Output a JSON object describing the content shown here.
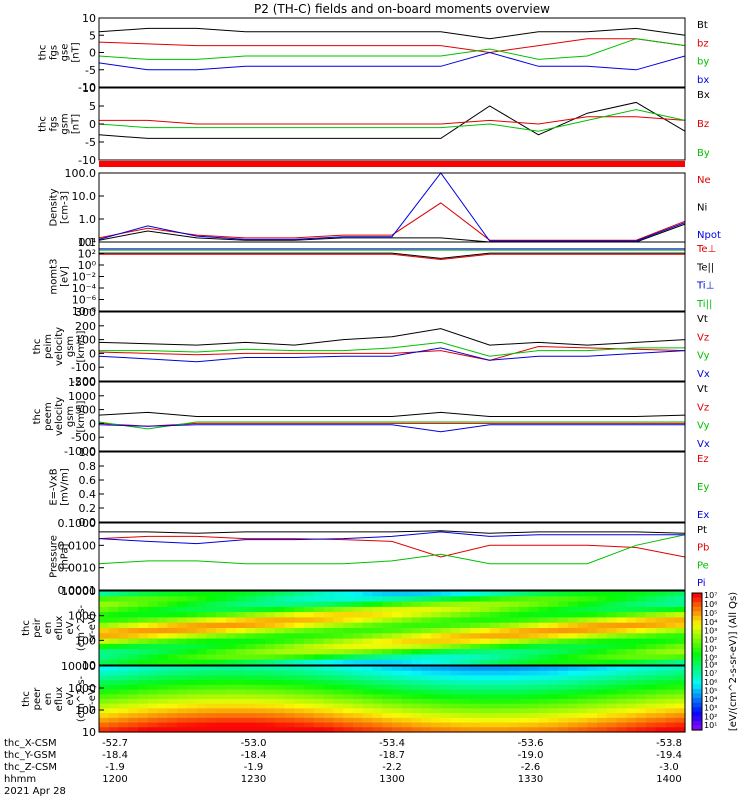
{
  "title": "P2 (TH-C) fields and on-board moments overview",
  "panels": [
    {
      "id": "fgs-gse",
      "ylabel": [
        "thc",
        "fgs",
        "gse",
        "[nT]"
      ],
      "yticks": [
        "10",
        "5",
        "0",
        "-5",
        "-10"
      ],
      "legend": [
        {
          "label": "Bt",
          "color": "#000000"
        },
        {
          "label": "bz",
          "color": "#e00000"
        },
        {
          "label": "by",
          "color": "#00c000"
        },
        {
          "label": "bx",
          "color": "#0000e0"
        }
      ]
    },
    {
      "id": "fgs-gsm",
      "ylabel": [
        "thc",
        "fgs",
        "gsm",
        "[nT]"
      ],
      "yticks": [
        "10",
        "5",
        "0",
        "-5",
        "-10"
      ],
      "legend": [
        {
          "label": "Bx",
          "color": "#000000"
        },
        {
          "label": "Bz",
          "color": "#e00000"
        },
        {
          "label": "By",
          "color": "#00c000"
        }
      ]
    },
    {
      "id": "density",
      "ylabel": [
        "Density",
        "[cm-3]"
      ],
      "yticks": [
        "100.0",
        "10.0",
        "1.0",
        "0.1"
      ],
      "legend": [
        {
          "label": "Ne",
          "color": "#e00000"
        },
        {
          "label": "Ni",
          "color": "#000000"
        },
        {
          "label": "Npot",
          "color": "#0000e0"
        }
      ]
    },
    {
      "id": "temperature",
      "ylabel": [
        "momt3",
        "[eV]"
      ],
      "yticks": [
        "10⁴",
        "10²",
        "10⁰",
        "10⁻²",
        "10⁻⁴",
        "10⁻⁶",
        "10⁻⁸"
      ],
      "legend": [
        {
          "label": "Te⊥",
          "color": "#e00000"
        },
        {
          "label": "Te||",
          "color": "#000000"
        },
        {
          "label": "Ti⊥",
          "color": "#0000e0"
        },
        {
          "label": "Ti||",
          "color": "#00c000"
        }
      ]
    },
    {
      "id": "peim-velocity",
      "ylabel": [
        "thc",
        "peim",
        "velocity",
        "gsm",
        "[km/s]"
      ],
      "yticks": [
        "300",
        "200",
        "100",
        "0",
        "-100",
        "-200"
      ],
      "legend": [
        {
          "label": "Vt",
          "color": "#000000"
        },
        {
          "label": "Vz",
          "color": "#e00000"
        },
        {
          "label": "Vy",
          "color": "#00c000"
        },
        {
          "label": "Vx",
          "color": "#0000e0"
        }
      ]
    },
    {
      "id": "peem-velocity",
      "ylabel": [
        "thc",
        "peem",
        "velocity",
        "gsm",
        "[km/s]"
      ],
      "yticks": [
        "1500",
        "1000",
        "500",
        "0",
        "-500",
        "-1000"
      ],
      "legend": [
        {
          "label": "Vt",
          "color": "#000000"
        },
        {
          "label": "Vz",
          "color": "#e00000"
        },
        {
          "label": "Vy",
          "color": "#00c000"
        },
        {
          "label": "Vx",
          "color": "#0000e0"
        }
      ]
    },
    {
      "id": "efield",
      "ylabel": [
        "E=-VxB",
        "[mV/m]"
      ],
      "yticks": [
        "1.0",
        "0.8",
        "0.6",
        "0.4",
        "0.2",
        "0.0"
      ],
      "legend": [
        {
          "label": "Ez",
          "color": "#e00000"
        },
        {
          "label": "Ey",
          "color": "#00c000"
        },
        {
          "label": "Ex",
          "color": "#0000e0"
        }
      ]
    },
    {
      "id": "pressure",
      "ylabel": [
        "Pressure",
        "[nPa]"
      ],
      "yticks": [
        "0.1000",
        "0.0100",
        "0.0010",
        "0.0001"
      ],
      "legend": [
        {
          "label": "Pt",
          "color": "#000000"
        },
        {
          "label": "Pb",
          "color": "#e00000"
        },
        {
          "label": "Pe",
          "color": "#00c000"
        },
        {
          "label": "Pi",
          "color": "#0000e0"
        }
      ]
    },
    {
      "id": "peir-eflux",
      "ylabel": [
        "thc",
        "peir",
        "en",
        "eflux",
        "eV",
        "(cm^2-s-",
        "sr-eV)"
      ],
      "yticks": [
        "10000",
        "1000",
        "100",
        "10"
      ]
    },
    {
      "id": "peer-eflux",
      "ylabel": [
        "thc",
        "peer",
        "en",
        "eflux",
        "eV",
        "(cm^2-s-",
        "sr-eV)"
      ],
      "yticks": [
        "10000",
        "1000",
        "100",
        "10"
      ]
    }
  ],
  "colorbar": {
    "label": "[eV/(cm^2-s-sr-eV)]",
    "label_right": "(All Qs)",
    "ticks_top": [
      "10⁷",
      "10⁶",
      "10⁵",
      "10⁴",
      "10³",
      "10²",
      "10¹",
      "10⁰"
    ],
    "ticks_bottom": [
      "10⁸",
      "10⁷",
      "10⁶",
      "10⁵",
      "10⁴",
      "10³",
      "10²",
      "10¹"
    ]
  },
  "xaxis": {
    "rows": [
      {
        "label": "thc_X-CSM",
        "values": [
          "-52.7",
          "-53.0",
          "-53.4",
          "-53.6",
          "-53.8"
        ]
      },
      {
        "label": "thc_Y-GSM",
        "values": [
          "-18.4",
          "-18.4",
          "-18.7",
          "-19.0",
          "-19.4"
        ]
      },
      {
        "label": "thc_Z-CSM",
        "values": [
          "-1.9",
          "-1.9",
          "-2.2",
          "-2.6",
          "-3.0"
        ]
      },
      {
        "label": "hhmm",
        "values": [
          "1200",
          "1230",
          "1300",
          "1330",
          "1400"
        ]
      }
    ],
    "date": "2021 Apr 28"
  },
  "chart_data": {
    "type": "line",
    "title": "P2 (TH-C) fields and on-board moments overview",
    "x": [
      "1200",
      "1210",
      "1220",
      "1230",
      "1240",
      "1250",
      "1300",
      "1310",
      "1320",
      "1330",
      "1340",
      "1350",
      "1400"
    ],
    "xlabel": "hhmm",
    "date": "2021 Apr 28",
    "panels": [
      {
        "name": "thc fgs gse [nT]",
        "ylim": [
          -10,
          10
        ],
        "scale": "linear",
        "series": [
          {
            "name": "Bt",
            "values": [
              6,
              7,
              7,
              6,
              6,
              6,
              6,
              6,
              4,
              6,
              6,
              7,
              5
            ]
          },
          {
            "name": "bz",
            "values": [
              3,
              2.5,
              2,
              2,
              2,
              2,
              2,
              2,
              0,
              2,
              4,
              4,
              2
            ]
          },
          {
            "name": "by",
            "values": [
              -1,
              -2,
              -2,
              -1,
              -1,
              -1,
              -1,
              -1,
              1,
              -2,
              -1,
              4,
              2
            ]
          },
          {
            "name": "bx",
            "values": [
              -3,
              -5,
              -5,
              -4,
              -4,
              -4,
              -4,
              -4,
              0,
              -4,
              -4,
              -5,
              -1
            ]
          }
        ]
      },
      {
        "name": "thc fgs gsm [nT]",
        "ylim": [
          -10,
          10
        ],
        "scale": "linear",
        "series": [
          {
            "name": "Bx",
            "values": [
              -3,
              -4,
              -4,
              -4,
              -4,
              -4,
              -4,
              -4,
              5,
              -3,
              3,
              6,
              -2
            ]
          },
          {
            "name": "Bz",
            "values": [
              1,
              1,
              0,
              0,
              0,
              0,
              0,
              0,
              1,
              0,
              2,
              2,
              1
            ]
          },
          {
            "name": "By",
            "values": [
              0,
              -1,
              -1,
              -1,
              -1,
              -1,
              -1,
              -1,
              0,
              -2,
              1,
              4,
              1
            ]
          }
        ]
      },
      {
        "name": "Density [cm-3]",
        "ylim": [
          0.1,
          100
        ],
        "scale": "log",
        "series": [
          {
            "name": "Ne",
            "values": [
              0.15,
              0.4,
              0.2,
              0.15,
              0.15,
              0.2,
              0.2,
              5,
              0.12,
              0.12,
              0.12,
              0.12,
              0.8
            ]
          },
          {
            "name": "Ni",
            "values": [
              0.12,
              0.3,
              0.15,
              0.12,
              0.12,
              0.15,
              0.15,
              0.15,
              0.1,
              0.1,
              0.1,
              0.1,
              0.6
            ]
          },
          {
            "name": "Npot",
            "values": [
              0.13,
              0.5,
              0.18,
              0.13,
              0.13,
              0.17,
              0.17,
              150,
              0.11,
              0.11,
              0.11,
              0.11,
              0.7
            ]
          }
        ]
      },
      {
        "name": "momt3 [eV]",
        "ylim": [
          1e-08,
          100000.0
        ],
        "scale": "log",
        "series": [
          {
            "name": "Te⊥",
            "values": [
              500,
              500,
              500,
              500,
              500,
              500,
              500,
              50,
              500,
              500,
              500,
              500,
              500
            ]
          },
          {
            "name": "Te||",
            "values": [
              800,
              800,
              800,
              800,
              800,
              800,
              800,
              80,
              800,
              800,
              800,
              800,
              800
            ]
          },
          {
            "name": "Ti⊥",
            "values": [
              5000,
              5000,
              5000,
              5000,
              5000,
              5000,
              5000,
              5000,
              5000,
              5000,
              5000,
              5000,
              5000
            ]
          },
          {
            "name": "Ti||",
            "values": [
              3000,
              3000,
              3000,
              3000,
              3000,
              3000,
              3000,
              3000,
              3000,
              3000,
              3000,
              3000,
              3000
            ]
          }
        ]
      },
      {
        "name": "thc peim velocity gsm [km/s]",
        "ylim": [
          -200,
          300
        ],
        "scale": "linear",
        "series": [
          {
            "name": "Vt",
            "values": [
              80,
              70,
              60,
              80,
              60,
              100,
              120,
              180,
              60,
              80,
              60,
              80,
              100
            ]
          },
          {
            "name": "Vz",
            "values": [
              10,
              0,
              -10,
              0,
              0,
              0,
              0,
              20,
              -50,
              50,
              40,
              30,
              20
            ]
          },
          {
            "name": "Vy",
            "values": [
              20,
              20,
              10,
              30,
              20,
              20,
              40,
              80,
              -20,
              20,
              20,
              40,
              40
            ]
          },
          {
            "name": "Vx",
            "values": [
              -20,
              -40,
              -60,
              -30,
              -30,
              -20,
              -20,
              40,
              -50,
              -20,
              -20,
              0,
              20
            ]
          }
        ]
      },
      {
        "name": "thc peem velocity gsm [km/s]",
        "ylim": [
          -1000,
          1500
        ],
        "scale": "linear",
        "series": [
          {
            "name": "Vt",
            "values": [
              300,
              400,
              250,
              250,
              250,
              250,
              250,
              400,
              250,
              250,
              250,
              250,
              300
            ]
          },
          {
            "name": "Vz",
            "values": [
              0,
              -100,
              0,
              0,
              0,
              0,
              0,
              0,
              0,
              0,
              0,
              0,
              0
            ]
          },
          {
            "name": "Vy",
            "values": [
              50,
              -200,
              50,
              50,
              50,
              50,
              50,
              50,
              50,
              50,
              50,
              50,
              50
            ]
          },
          {
            "name": "Vx",
            "values": [
              -50,
              -100,
              -50,
              -50,
              -50,
              -50,
              -50,
              -300,
              -50,
              -50,
              -50,
              -50,
              -50
            ]
          }
        ]
      },
      {
        "name": "E=-VxB [mV/m]",
        "ylim": [
          0,
          1
        ],
        "scale": "linear",
        "series": [
          {
            "name": "Ez",
            "values": []
          },
          {
            "name": "Ey",
            "values": []
          },
          {
            "name": "Ex",
            "values": []
          }
        ]
      },
      {
        "name": "Pressure [nPa]",
        "ylim": [
          0.0001,
          0.1
        ],
        "scale": "log",
        "series": [
          {
            "name": "Pt",
            "values": [
              0.04,
              0.04,
              0.035,
              0.04,
              0.04,
              0.04,
              0.04,
              0.045,
              0.035,
              0.04,
              0.04,
              0.04,
              0.035
            ]
          },
          {
            "name": "Pb",
            "values": [
              0.02,
              0.025,
              0.025,
              0.02,
              0.02,
              0.018,
              0.015,
              0.003,
              0.01,
              0.01,
              0.01,
              0.008,
              0.003
            ]
          },
          {
            "name": "Pe",
            "values": [
              0.0015,
              0.002,
              0.002,
              0.0015,
              0.0015,
              0.0015,
              0.002,
              0.004,
              0.0015,
              0.0015,
              0.0015,
              0.01,
              0.03
            ]
          },
          {
            "name": "Pi",
            "values": [
              0.02,
              0.015,
              0.012,
              0.018,
              0.018,
              0.02,
              0.025,
              0.04,
              0.025,
              0.03,
              0.03,
              0.03,
              0.03
            ]
          }
        ]
      }
    ],
    "spectrograms": [
      {
        "name": "thc peir en eflux",
        "ylim": [
          10,
          10000
        ],
        "scale": "log",
        "zlim": [
          1,
          10000000.0
        ]
      },
      {
        "name": "thc peer en eflux",
        "ylim": [
          10,
          10000
        ],
        "scale": "log",
        "zlim": [
          10,
          100000000.0
        ]
      }
    ]
  }
}
